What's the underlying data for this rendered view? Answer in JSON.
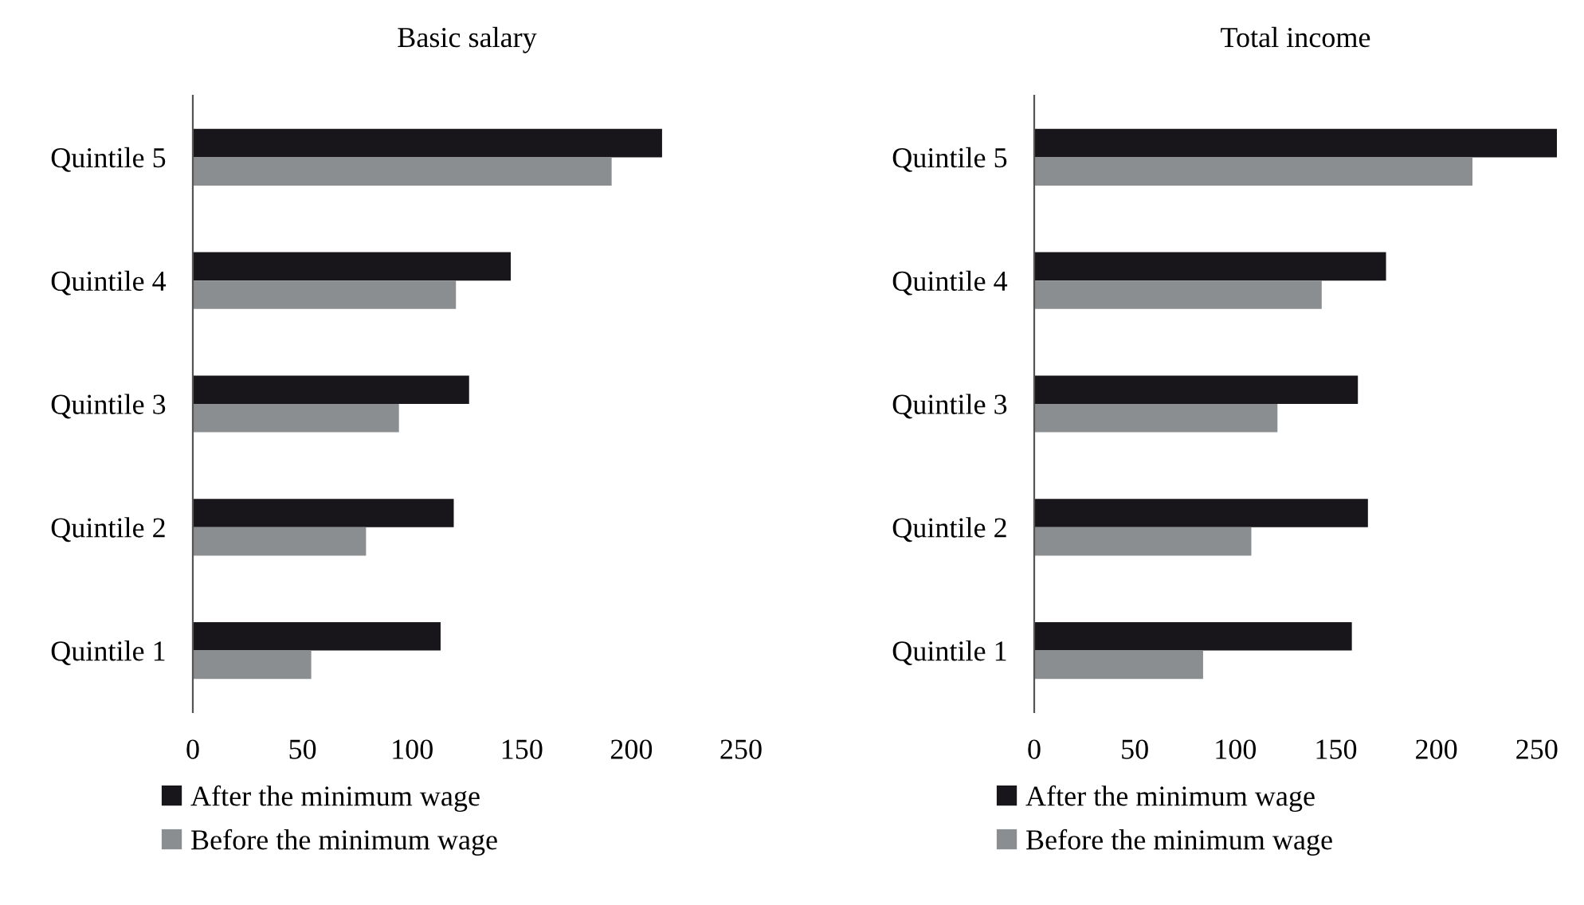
{
  "chart_data": [
    {
      "type": "bar",
      "orientation": "horizontal",
      "title": "Basic salary",
      "categories": [
        "Quintile 5",
        "Quintile 4",
        "Quintile 3",
        "Quintile 2",
        "Quintile 1"
      ],
      "series": [
        {
          "name": "After the minimum wage",
          "color": "#18161b",
          "values": [
            214,
            145,
            126,
            119,
            113
          ]
        },
        {
          "name": "Before the minimum wage",
          "color": "#8a8e91",
          "values": [
            191,
            120,
            94,
            79,
            54
          ]
        }
      ],
      "xlim": [
        0,
        250
      ],
      "xticks": [
        0,
        50,
        100,
        150,
        200,
        250
      ],
      "grid": false,
      "legend": "bottom"
    },
    {
      "type": "bar",
      "orientation": "horizontal",
      "title": "Total income",
      "categories": [
        "Quintile 5",
        "Quintile 4",
        "Quintile 3",
        "Quintile 2",
        "Quintile 1"
      ],
      "series": [
        {
          "name": "After the minimum wage",
          "color": "#18161b",
          "values": [
            260,
            175,
            161,
            166,
            158
          ]
        },
        {
          "name": "Before the minimum wage",
          "color": "#8a8e91",
          "values": [
            218,
            143,
            121,
            108,
            84
          ]
        }
      ],
      "xlim": [
        0,
        260
      ],
      "xticks": [
        0,
        50,
        100,
        150,
        200,
        250
      ],
      "grid": false,
      "legend": "bottom"
    }
  ]
}
